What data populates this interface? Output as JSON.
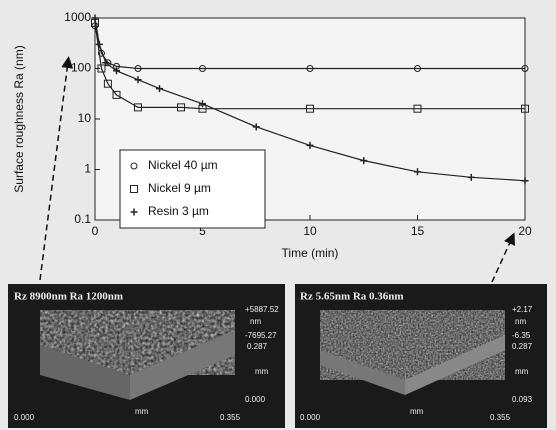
{
  "chart_data": {
    "type": "line",
    "y_label": "Surface roughness Ra (nm)",
    "x_label": "Time (min)",
    "ylim": [
      0.1,
      1000
    ],
    "yticks": [
      0.1,
      1,
      10,
      100,
      1000
    ],
    "log_y": true,
    "xlim": [
      0,
      20
    ],
    "xticks": [
      0,
      5,
      10,
      15,
      20
    ],
    "series": [
      {
        "name": "Nickel 40 µm",
        "color": "#222222",
        "marker": "circle",
        "x": [
          0,
          0.3,
          0.6,
          1,
          2,
          5,
          10,
          15,
          20
        ],
        "values": [
          700,
          200,
          130,
          110,
          100,
          100,
          100,
          100,
          100
        ]
      },
      {
        "name": "Nickel 9 µm",
        "color": "#222222",
        "marker": "square",
        "x": [
          0,
          0.3,
          0.6,
          1,
          2,
          4,
          5,
          10,
          15,
          20
        ],
        "values": [
          800,
          100,
          50,
          30,
          17,
          17,
          16,
          16,
          16,
          16
        ]
      },
      {
        "name": "Resin 3 µm",
        "color": "#222222",
        "marker": "plus",
        "x": [
          0,
          0.2,
          0.5,
          1,
          2,
          3,
          5,
          7.5,
          10,
          12.5,
          15,
          17.5,
          20
        ],
        "values": [
          1000,
          300,
          130,
          90,
          60,
          40,
          20,
          7,
          3,
          1.5,
          0.9,
          0.7,
          0.6
        ]
      }
    ]
  },
  "images": [
    {
      "header": "Rz 8900nm  Ra 1200nm",
      "scale_top": "+5887.52",
      "scale_unit": "nm",
      "scale_bottom": "-7695.27",
      "scale_extra": "0.287",
      "depth_unit": "mm",
      "depth_end": "0.000",
      "x_start": "0.000",
      "x_unit": "mm",
      "x_end": "0.355"
    },
    {
      "header": "Rz 5.65nm  Ra 0.36nm",
      "scale_top": "+2.17",
      "scale_unit": "nm",
      "scale_bottom": "-6.35",
      "scale_extra": "0.287",
      "depth_unit": "mm",
      "depth_end": "0.093",
      "x_start": "0.000",
      "x_unit": "mm",
      "x_end": "0.355"
    }
  ]
}
